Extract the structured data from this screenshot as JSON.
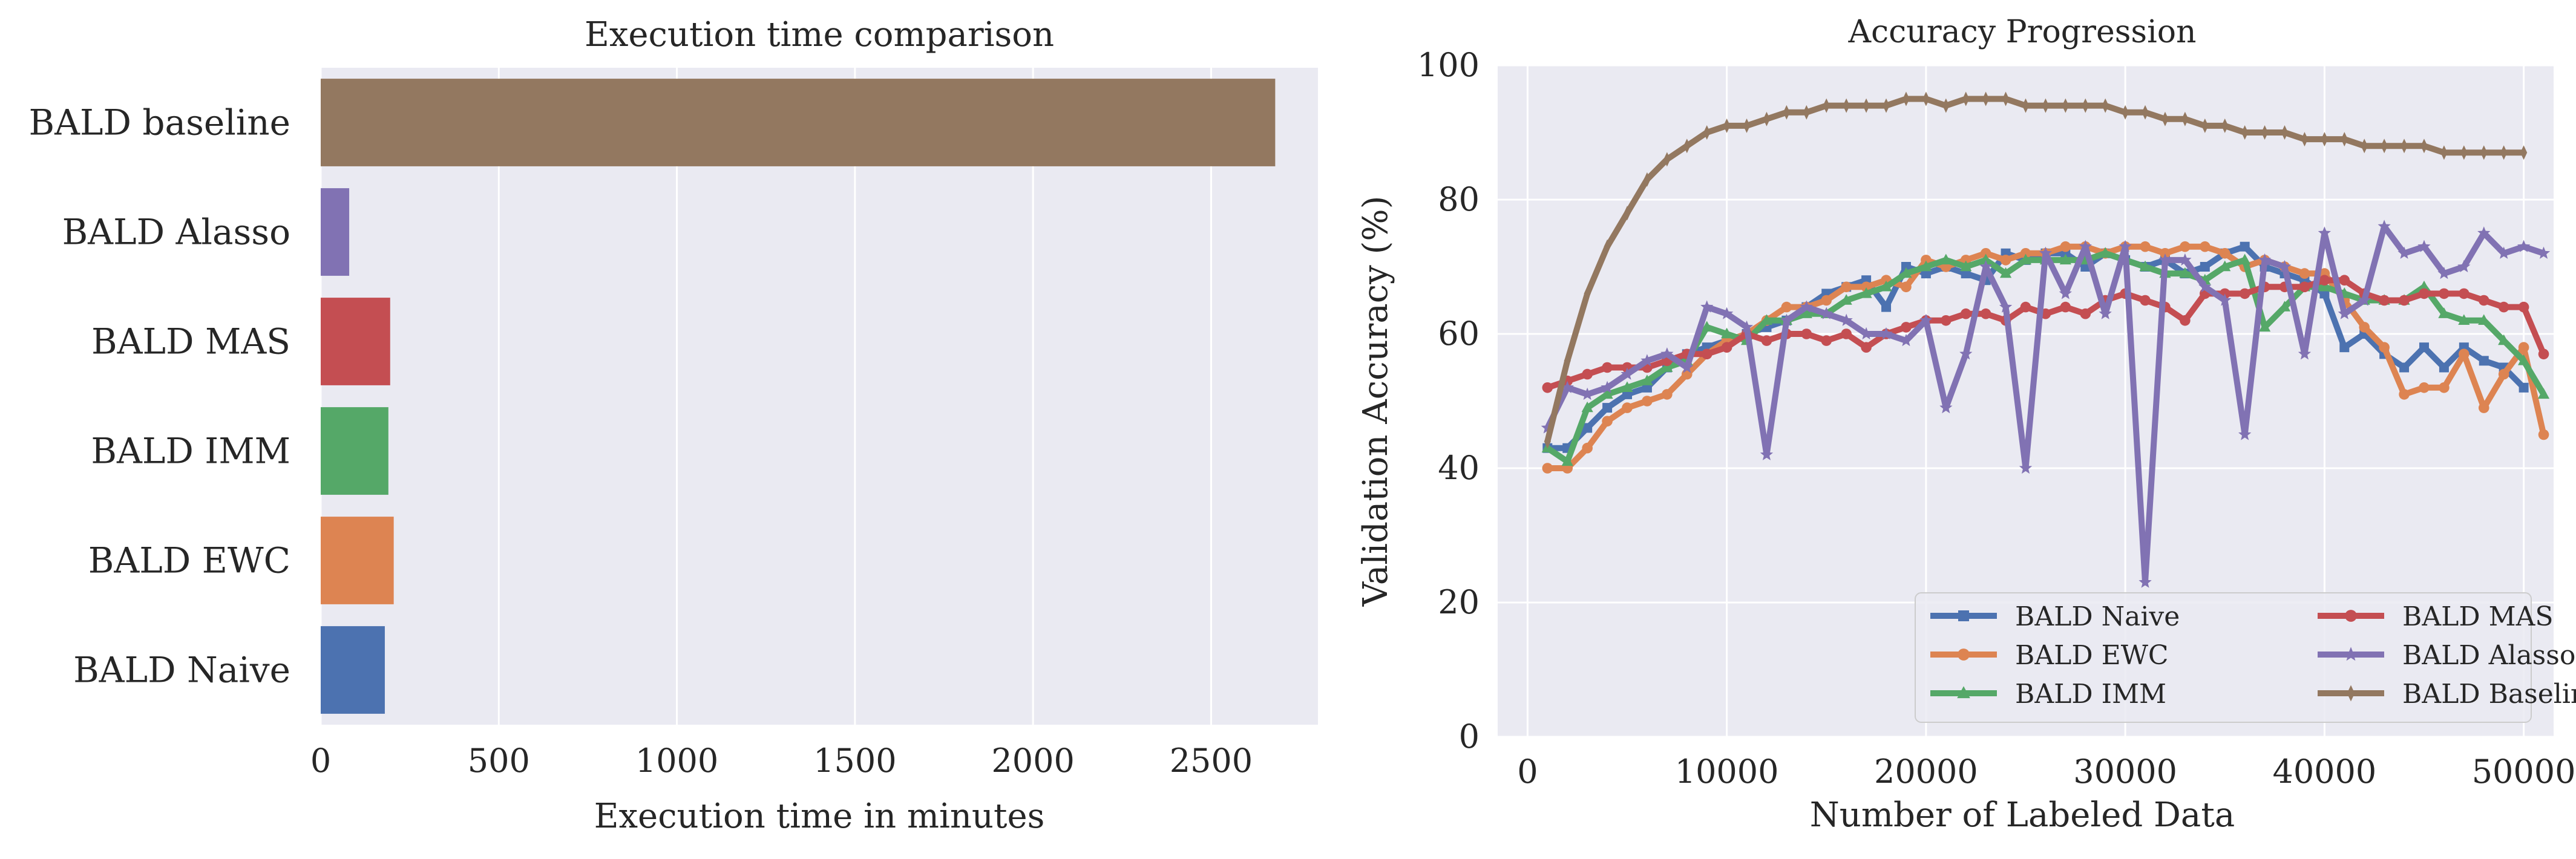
{
  "chart_data": [
    {
      "type": "bar",
      "orientation": "horizontal",
      "title": "Execution time comparison",
      "xlabel": "Execution time in minutes",
      "ylabel": "",
      "xlim": [
        0,
        2800
      ],
      "xticks": [
        0,
        500,
        1000,
        1500,
        2000,
        2500
      ],
      "grid": true,
      "categories": [
        "BALD Naive",
        "BALD EWC",
        "BALD IMM",
        "BALD MAS",
        "BALD Alasso",
        "BALD baseline"
      ],
      "values": [
        180,
        205,
        190,
        195,
        80,
        2680
      ],
      "colors": [
        "#4c72b0",
        "#dd8452",
        "#55a868",
        "#c44e52",
        "#8172b3",
        "#937860"
      ]
    },
    {
      "type": "line",
      "title": "Accuracy Progression",
      "xlabel": "Number of Labeled Data",
      "ylabel": "Validation Accuracy (%)",
      "xlim": [
        -1500,
        51500
      ],
      "ylim": [
        0,
        100
      ],
      "xticks": [
        0,
        10000,
        20000,
        30000,
        40000,
        50000
      ],
      "yticks": [
        0,
        20,
        40,
        60,
        80,
        100
      ],
      "grid": true,
      "legend": "lower-right",
      "legend_columns": 2,
      "x_start": 1000,
      "x_step": 1000,
      "series": [
        {
          "name": "BALD Naive",
          "color": "#4c72b0",
          "marker": "square",
          "values": [
            43,
            43,
            46,
            49,
            51,
            52,
            55,
            57,
            58,
            59,
            60,
            61,
            62,
            64,
            66,
            67,
            68,
            64,
            70,
            69,
            70,
            69,
            68,
            72,
            71,
            72,
            72,
            70,
            72,
            71,
            70,
            71,
            69,
            70,
            72,
            73,
            70,
            69,
            68,
            66,
            58,
            60,
            57,
            55,
            58,
            55,
            58,
            56,
            55,
            52
          ]
        },
        {
          "name": "BALD EWC",
          "color": "#dd8452",
          "marker": "circle",
          "values": [
            40,
            40,
            43,
            47,
            49,
            50,
            51,
            54,
            57,
            59,
            60,
            62,
            64,
            64,
            65,
            67,
            67,
            68,
            67,
            71,
            70,
            71,
            72,
            71,
            72,
            72,
            73,
            73,
            72,
            73,
            73,
            72,
            73,
            73,
            72,
            70,
            71,
            70,
            69,
            69,
            65,
            61,
            58,
            51,
            52,
            52,
            57,
            49,
            54,
            58,
            45
          ]
        },
        {
          "name": "BALD IMM",
          "color": "#55a868",
          "marker": "triangle",
          "values": [
            43,
            41,
            49,
            51,
            52,
            53,
            55,
            56,
            61,
            60,
            59,
            62,
            62,
            63,
            63,
            65,
            66,
            67,
            69,
            70,
            71,
            70,
            71,
            69,
            71,
            71,
            71,
            71,
            72,
            71,
            70,
            69,
            69,
            68,
            70,
            71,
            61,
            64,
            67,
            67,
            66,
            65,
            65,
            65,
            67,
            63,
            62,
            62,
            59,
            56,
            51
          ]
        },
        {
          "name": "BALD MAS",
          "color": "#c44e52",
          "marker": "circle",
          "values": [
            52,
            53,
            54,
            55,
            55,
            55,
            56,
            57,
            57,
            58,
            60,
            59,
            60,
            60,
            59,
            60,
            58,
            60,
            61,
            62,
            62,
            63,
            63,
            62,
            64,
            63,
            64,
            63,
            65,
            66,
            65,
            64,
            62,
            66,
            66,
            66,
            67,
            67,
            67,
            68,
            68,
            66,
            65,
            65,
            66,
            66,
            66,
            65,
            64,
            64,
            57
          ]
        },
        {
          "name": "BALD Alasso",
          "color": "#8172b3",
          "marker": "star",
          "values": [
            46,
            52,
            51,
            52,
            54,
            56,
            57,
            55,
            64,
            63,
            61,
            42,
            62,
            64,
            63,
            62,
            60,
            60,
            59,
            62,
            49,
            57,
            70,
            64,
            40,
            72,
            66,
            73,
            63,
            73,
            23,
            71,
            71,
            67,
            65,
            45,
            71,
            70,
            57,
            75,
            63,
            65,
            76,
            72,
            73,
            69,
            70,
            75,
            72,
            73,
            72
          ]
        },
        {
          "name": "BALD Baseline",
          "color": "#937860",
          "marker": "thin_diamond",
          "values": [
            44,
            56,
            66,
            73,
            78,
            83,
            86,
            88,
            90,
            91,
            91,
            92,
            93,
            93,
            94,
            94,
            94,
            94,
            95,
            95,
            94,
            95,
            95,
            95,
            94,
            94,
            94,
            94,
            94,
            93,
            93,
            92,
            92,
            91,
            91,
            90,
            90,
            90,
            89,
            89,
            89,
            88,
            88,
            88,
            88,
            87,
            87,
            87,
            87,
            87
          ]
        }
      ]
    }
  ]
}
